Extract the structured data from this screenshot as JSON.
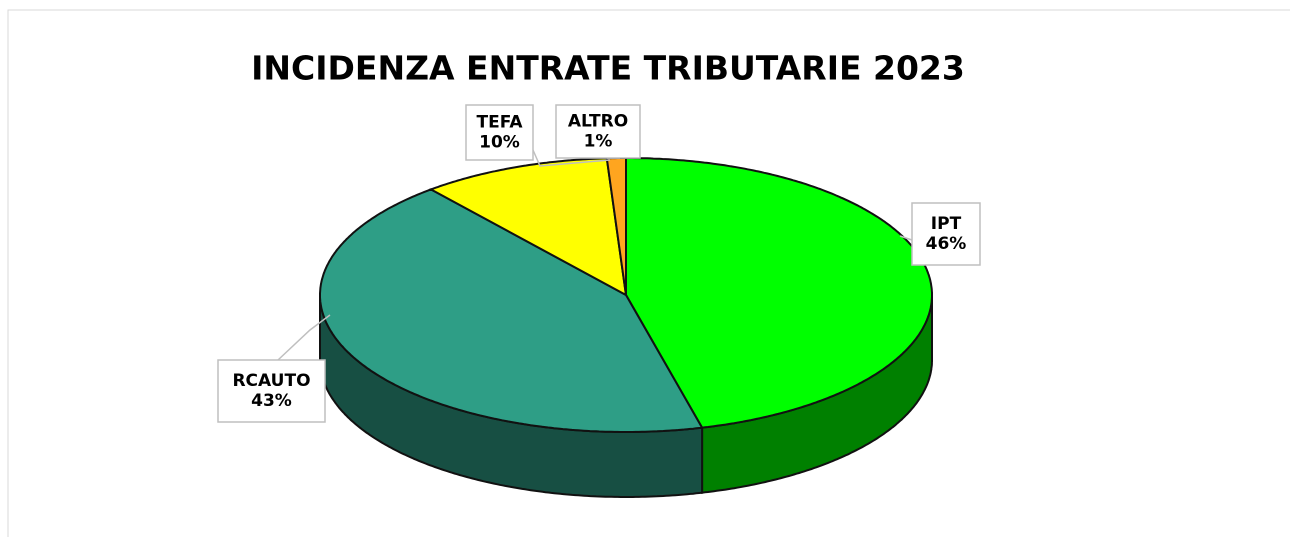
{
  "chart_data": {
    "type": "pie3d",
    "title": "INCIDENZA ENTRATE TRIBUTARIE 2023",
    "categories": [
      "IPT",
      "RCAUTO",
      "TEFA",
      "ALTRO"
    ],
    "values": [
      46,
      43,
      10,
      1
    ],
    "value_labels": [
      "46%",
      "43%",
      "10%",
      "1%"
    ],
    "colors": [
      "#00ff00",
      "#2e9e86",
      "#ffff00",
      "#ffa51f"
    ]
  }
}
